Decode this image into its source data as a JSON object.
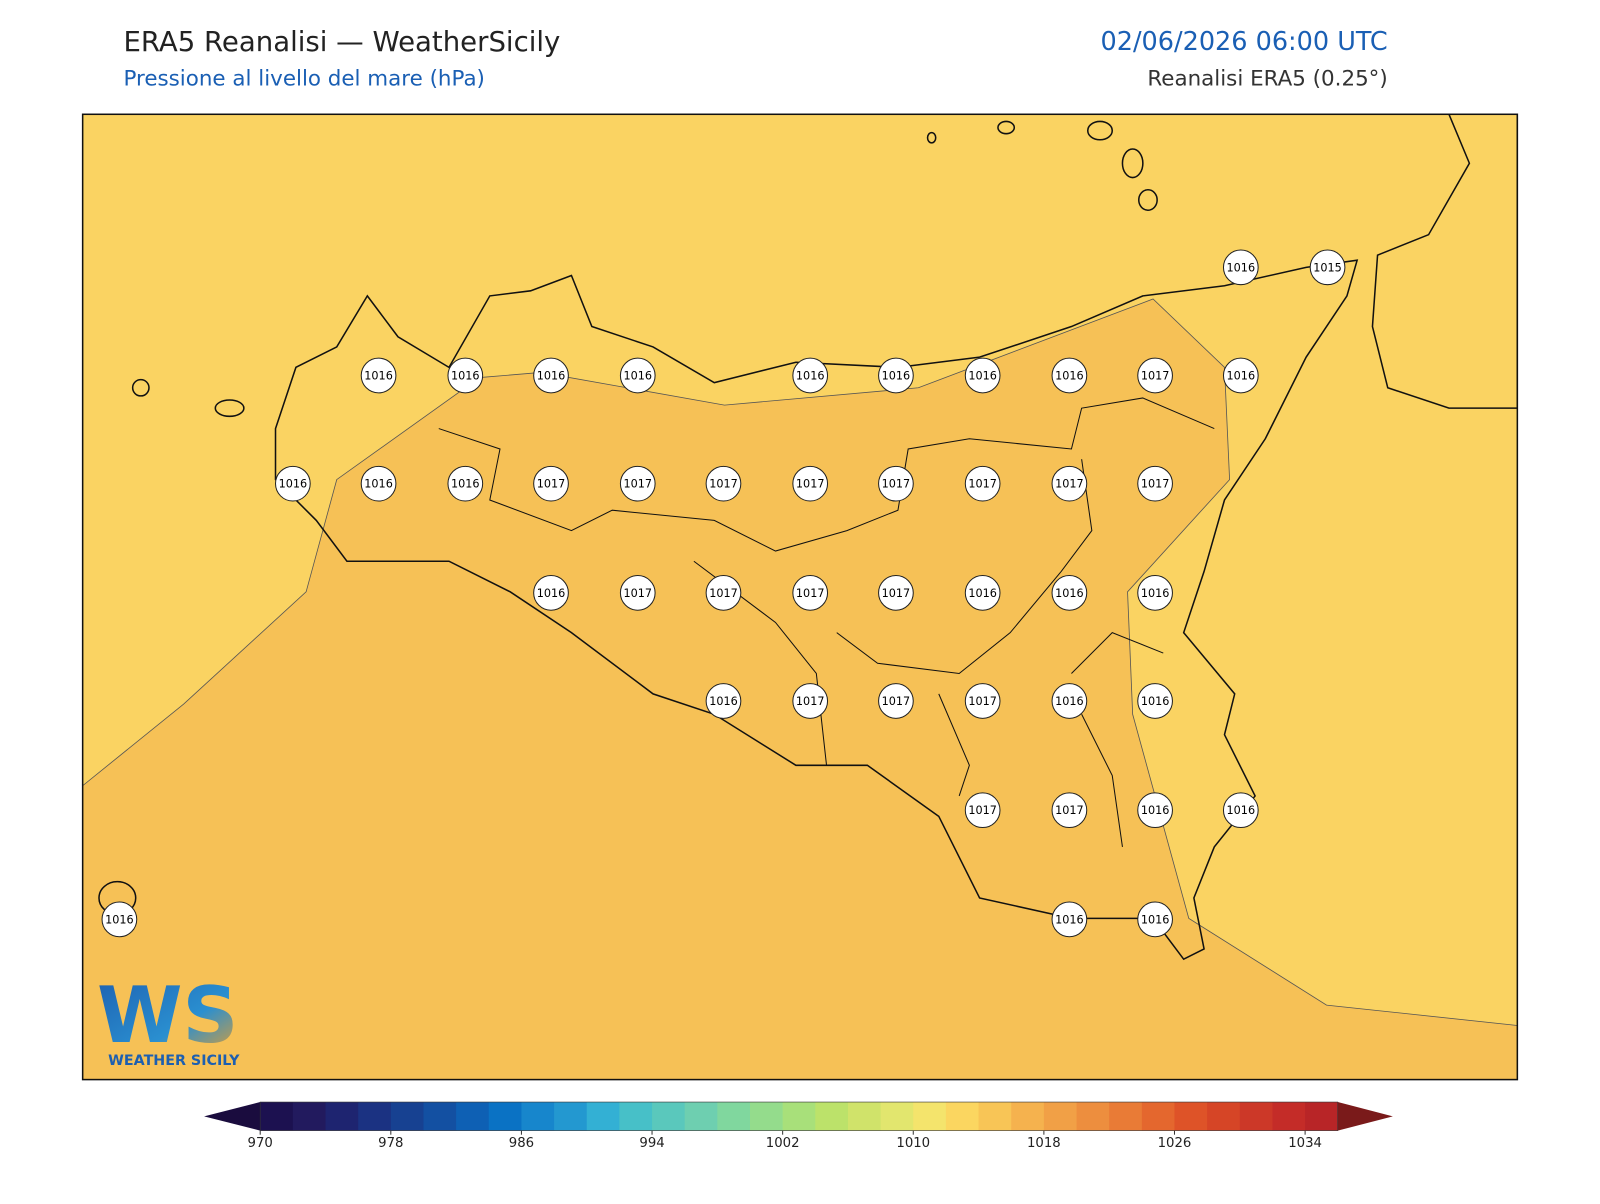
{
  "header": {
    "title": "ERA5 Reanalisi — WeatherSicily",
    "subtitle": "Pressione al livello del mare (hPa)",
    "datetime": "02/06/2026 06:00 UTC",
    "source": "Reanalisi ERA5 (0.25°)"
  },
  "map": {
    "stations": [
      1016,
      1015,
      1016,
      1016,
      1016,
      1016,
      1016,
      1016,
      1016,
      1016,
      1017,
      1016,
      1016,
      1016,
      1016,
      1017,
      1017,
      1017,
      1017,
      1017,
      1017,
      1017,
      1017,
      1016,
      1017,
      1017,
      1017,
      1017,
      1016,
      1016,
      1016,
      1016,
      1017,
      1017,
      1017,
      1016,
      1016,
      1017,
      1017,
      1016,
      1016,
      1016,
      1016,
      1016
    ]
  },
  "colorbar": {
    "ticks": [
      970,
      978,
      986,
      994,
      1002,
      1010,
      1018,
      1026,
      1034
    ],
    "colors": [
      "#1c1150",
      "#221a5e",
      "#1e2470",
      "#1b3282",
      "#174191",
      "#1350a2",
      "#0e60b4",
      "#0a72c4",
      "#1786cc",
      "#2398d0",
      "#33b0d4",
      "#47c0c8",
      "#5ac8bc",
      "#6ecfb0",
      "#80d79e",
      "#94dc8c",
      "#a8e07a",
      "#bce26a",
      "#d0e36a",
      "#e2e66e",
      "#f4e46c",
      "#fbd660",
      "#f8c556",
      "#f5b24e",
      "#f1a046",
      "#ed8e3e",
      "#e97b36",
      "#e4672e",
      "#de5328",
      "#d64526",
      "#cc3828",
      "#c42c28",
      "#b82527"
    ],
    "under": "#1a0c3e",
    "over": "#7a1a1a"
  },
  "logo": {
    "mark": "WS",
    "name": "WEATHER SICILY"
  }
}
